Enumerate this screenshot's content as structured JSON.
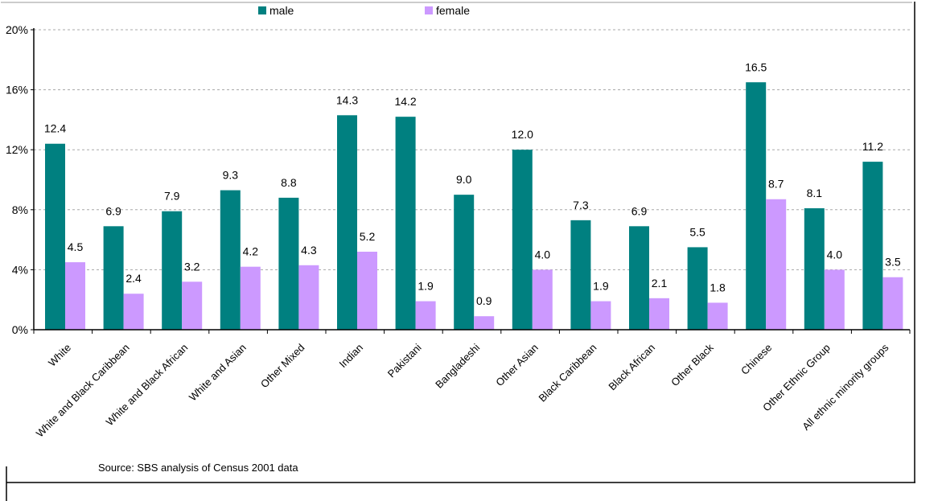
{
  "chart_data": {
    "type": "bar",
    "categories": [
      "White",
      "White and Black Caribbean",
      "White and Black African",
      "White and Asian",
      "Other Mixed",
      "Indian",
      "Pakistani",
      "Bangladeshi",
      "Other Asian",
      "Black Caribbean",
      "Black African",
      "Other Black",
      "Chinese",
      "Other Ethnic Group",
      "All ethnic minority groups"
    ],
    "series": [
      {
        "name": "male",
        "color": "#008080",
        "values": [
          12.4,
          6.9,
          7.9,
          9.3,
          8.8,
          14.3,
          14.2,
          9.0,
          12.0,
          7.3,
          6.9,
          5.5,
          16.5,
          8.1,
          11.2
        ],
        "labels": [
          "12.4",
          "6.9",
          "7.9",
          "9.3",
          "8.8",
          "14.3",
          "14.2",
          "9.0",
          "12.0",
          "7.3",
          "6.9",
          "5.5",
          "16.5",
          "8.1",
          "11.2"
        ]
      },
      {
        "name": "female",
        "color": "#cc99ff",
        "values": [
          4.5,
          2.4,
          3.2,
          4.2,
          4.3,
          5.2,
          1.9,
          0.9,
          4.0,
          1.9,
          2.1,
          1.8,
          8.7,
          4.0,
          3.5
        ],
        "labels": [
          "4.5",
          "2.4",
          "3.2",
          "4.2",
          "4.3",
          "5.2",
          "1.9",
          "0.9",
          "4.0",
          "1.9",
          "2.1",
          "1.8",
          "8.7",
          "4.0",
          "3.5"
        ]
      }
    ],
    "ylim": [
      0,
      20
    ],
    "yticks": [
      0,
      4,
      8,
      12,
      16,
      20
    ],
    "ytick_labels": [
      "0%",
      "4%",
      "8%",
      "12%",
      "16%",
      "20%"
    ],
    "grid": true,
    "legend_position": "top-center",
    "annotation": "Source: SBS analysis of Census 2001 data"
  }
}
